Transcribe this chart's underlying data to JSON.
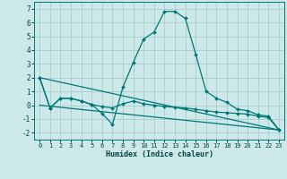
{
  "xlabel": "Humidex (Indice chaleur)",
  "background_color": "#cce8e8",
  "grid_color": "#aacccc",
  "line_color": "#007777",
  "xlim": [
    -0.5,
    23.5
  ],
  "ylim": [
    -2.5,
    7.5
  ],
  "xticks": [
    0,
    1,
    2,
    3,
    4,
    5,
    6,
    7,
    8,
    9,
    10,
    11,
    12,
    13,
    14,
    15,
    16,
    17,
    18,
    19,
    20,
    21,
    22,
    23
  ],
  "yticks": [
    -2,
    -1,
    0,
    1,
    2,
    3,
    4,
    5,
    6,
    7
  ],
  "series0_x": [
    0,
    1,
    2,
    3,
    4,
    5,
    6,
    7,
    8,
    9,
    10,
    11,
    12,
    13,
    14,
    15,
    16,
    17,
    18,
    19,
    20,
    21,
    22,
    23
  ],
  "series0_y": [
    2.0,
    -0.2,
    0.5,
    0.5,
    0.3,
    0.05,
    -0.6,
    -1.4,
    1.3,
    3.1,
    4.8,
    5.3,
    6.8,
    6.8,
    6.3,
    3.7,
    1.0,
    0.5,
    0.2,
    -0.3,
    -0.4,
    -0.7,
    -0.8,
    -1.8
  ],
  "series1_x": [
    0,
    1,
    2,
    3,
    4,
    5,
    6,
    7,
    8,
    9,
    10,
    11,
    12,
    13,
    14,
    15,
    16,
    17,
    18,
    19,
    20,
    21,
    22,
    23
  ],
  "series1_y": [
    2.0,
    -0.2,
    0.5,
    0.5,
    0.3,
    0.05,
    -0.1,
    -0.2,
    0.1,
    0.3,
    0.1,
    0.0,
    -0.1,
    -0.15,
    -0.2,
    -0.3,
    -0.4,
    -0.5,
    -0.55,
    -0.6,
    -0.65,
    -0.8,
    -0.9,
    -1.8
  ],
  "line2_x": [
    0,
    23
  ],
  "line2_y": [
    2.0,
    -1.8
  ],
  "line3_x": [
    0,
    23
  ],
  "line3_y": [
    0.0,
    -1.8
  ]
}
